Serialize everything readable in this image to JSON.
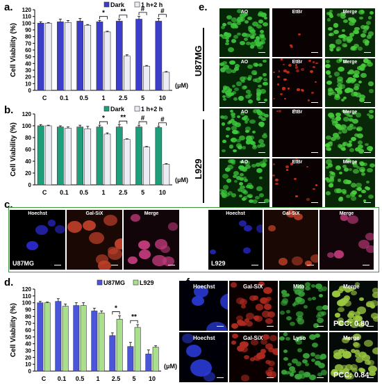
{
  "panel_letters": {
    "a": "a.",
    "b": "b.",
    "c": "c.",
    "d": "d.",
    "e": "e.",
    "f": "f."
  },
  "colors": {
    "dark_blue": "#3d3dcc",
    "teal": "#1e9e7a",
    "blue2": "#4a55d8",
    "lightgreen": "#a8e08c",
    "light": "#ececf4",
    "frame": "#3a9a3a"
  },
  "units": "(μM)",
  "chart_data": [
    {
      "id": "a",
      "type": "bar",
      "ylabel": "Cell Viability (%)",
      "xlabel": "(μM)",
      "categories": [
        "C",
        "0.1",
        "0.5",
        "1",
        "2.5",
        "5",
        "10"
      ],
      "ylim": [
        0,
        120
      ],
      "yticks": [
        0,
        10,
        20,
        30,
        40,
        50,
        60,
        70,
        80,
        90,
        100,
        110,
        120
      ],
      "legend": "top-right",
      "series": [
        {
          "name": "Dark",
          "color": "#3d3dcc",
          "values": [
            100,
            102,
            103,
            102,
            103,
            106,
            103
          ],
          "err": [
            2,
            4,
            4,
            2,
            3,
            4,
            4
          ]
        },
        {
          "name": "1 h+2 h",
          "color": "#ececf4",
          "values": [
            100,
            101,
            97,
            87,
            51,
            36,
            27
          ],
          "err": [
            1,
            3,
            1,
            1,
            2,
            1,
            1
          ]
        }
      ],
      "sig": [
        {
          "cat": 3,
          "label": "*"
        },
        {
          "cat": 4,
          "label": "**"
        },
        {
          "cat": 5,
          "label": "#"
        },
        {
          "cat": 6,
          "label": "#"
        }
      ]
    },
    {
      "id": "b",
      "type": "bar",
      "ylabel": "Cell Viability (%)",
      "xlabel": "(μM)",
      "categories": [
        "C",
        "0.1",
        "0.5",
        "1",
        "2.5",
        "5",
        "10"
      ],
      "ylim": [
        0,
        120
      ],
      "yticks": [
        0,
        20,
        40,
        60,
        80,
        100,
        120
      ],
      "legend": "top-right",
      "series": [
        {
          "name": "Dark",
          "color": "#1e9e7a",
          "values": [
            100,
            98,
            98,
            98,
            98,
            98,
            97
          ],
          "err": [
            2,
            2,
            3,
            3,
            4,
            3,
            2
          ]
        },
        {
          "name": "1 h+2 h",
          "color": "#ececf4",
          "values": [
            100,
            96,
            95,
            86,
            77,
            64,
            35
          ],
          "err": [
            1,
            2,
            4,
            2,
            1,
            1,
            1
          ]
        }
      ],
      "sig": [
        {
          "cat": 3,
          "label": "*"
        },
        {
          "cat": 4,
          "label": "**"
        },
        {
          "cat": 5,
          "label": "#"
        },
        {
          "cat": 6,
          "label": "#"
        }
      ]
    },
    {
      "id": "d",
      "type": "bar",
      "ylabel": "Cell Viability (%)",
      "xlabel": "(μM)",
      "categories": [
        "C",
        "0.1",
        "0.5",
        "1",
        "2.5",
        "5",
        "10"
      ],
      "ylim": [
        0,
        120
      ],
      "yticks": [
        0,
        10,
        20,
        30,
        40,
        50,
        60,
        70,
        80,
        90,
        100,
        110,
        120
      ],
      "legend": "top-right",
      "series": [
        {
          "name": "U87MG",
          "color": "#4a55d8",
          "values": [
            100,
            102,
            96,
            88,
            52,
            36,
            25
          ],
          "err": [
            2,
            4,
            4,
            4,
            4,
            6,
            6
          ]
        },
        {
          "name": "L929",
          "color": "#a8e08c",
          "values": [
            100,
            95,
            96,
            85,
            76,
            64,
            35
          ],
          "err": [
            1,
            3,
            4,
            3,
            5,
            4,
            2
          ]
        }
      ],
      "sig": [
        {
          "cat": 4,
          "label": "*"
        },
        {
          "cat": 5,
          "label": "**"
        }
      ]
    }
  ],
  "panel_c": {
    "left": {
      "labels": [
        "Hoechst",
        "Gal-SiX",
        "Merge"
      ],
      "cell": "U87MG"
    },
    "right": {
      "labels": [
        "Hoechst",
        "Gal-SiX",
        "Merge"
      ],
      "cell": "L929"
    }
  },
  "panel_e": {
    "row_labels": [
      "AO",
      "EtBr",
      "Merge"
    ],
    "groups": [
      "U87MG",
      "L929"
    ]
  },
  "panel_f": {
    "row1": [
      "Hoechst",
      "Gal-SiX",
      "Mito",
      "Merge"
    ],
    "row2": [
      "Hoechst",
      "Gal-SiX",
      "Lyso",
      "Merge"
    ],
    "pcc1": "PCC: 0.80",
    "pcc2": "PCC: 0.84"
  }
}
